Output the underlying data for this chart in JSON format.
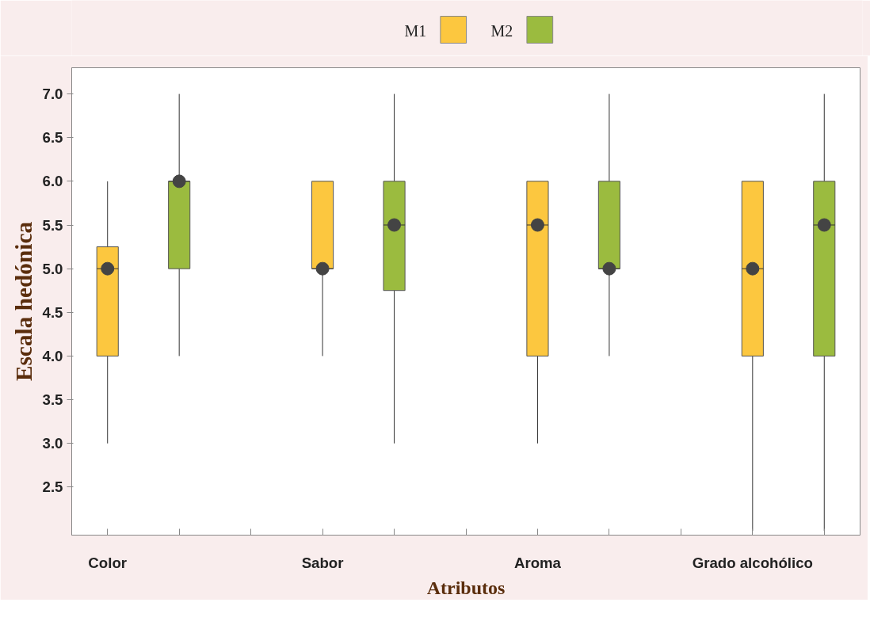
{
  "chart_data": {
    "type": "box",
    "xlabel": "Atributos",
    "ylabel": "Escala hedónica",
    "categories": [
      "Color",
      "Sabor",
      "Aroma",
      "Grado alcohólico"
    ],
    "ylim": [
      1.95,
      7.3
    ],
    "yticks": [
      {
        "value": 2.5,
        "label": "2.5"
      },
      {
        "value": 3.0,
        "label": "3.0"
      },
      {
        "value": 3.5,
        "label": "3.5"
      },
      {
        "value": 4.0,
        "label": "4.0"
      },
      {
        "value": 4.5,
        "label": "4.5"
      },
      {
        "value": 5.0,
        "label": "5.0"
      },
      {
        "value": 5.5,
        "label": "5.5"
      },
      {
        "value": 6.0,
        "label": "6.0"
      },
      {
        "value": 6.5,
        "label": "6.5"
      },
      {
        "value": 7.0,
        "label": "7.0"
      }
    ],
    "legend": "top",
    "grid": false,
    "series": [
      {
        "name": "M1",
        "color": "#fcc73f",
        "boxes": [
          {
            "low": 3,
            "q1": 4,
            "median": 5,
            "q3": 5.25,
            "high": 6,
            "mean": 5
          },
          {
            "low": 4,
            "q1": 5,
            "median": 5,
            "q3": 6,
            "high": 6,
            "mean": 5
          },
          {
            "low": 3,
            "q1": 4,
            "median": 5.5,
            "q3": 6,
            "high": 6,
            "mean": 5.5
          },
          {
            "low": 2,
            "q1": 4,
            "median": 5,
            "q3": 6,
            "high": 6,
            "mean": 5
          }
        ]
      },
      {
        "name": "M2",
        "color": "#9bbb3f",
        "boxes": [
          {
            "low": 4,
            "q1": 5,
            "median": 6,
            "q3": 6,
            "high": 7,
            "mean": 6
          },
          {
            "low": 3,
            "q1": 4.75,
            "median": 5.5,
            "q3": 6,
            "high": 7,
            "mean": 5.5
          },
          {
            "low": 4,
            "q1": 5,
            "median": 5,
            "q3": 6,
            "high": 7,
            "mean": 5
          },
          {
            "low": 2,
            "q1": 4,
            "median": 5.5,
            "q3": 6,
            "high": 7,
            "mean": 5.5
          }
        ]
      }
    ]
  }
}
